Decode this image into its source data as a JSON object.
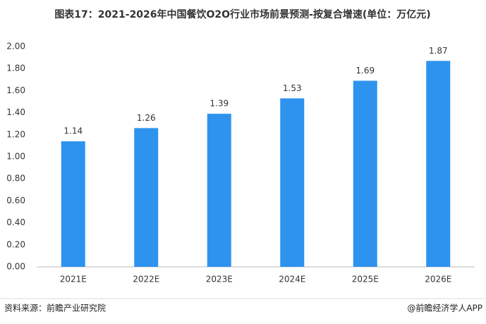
{
  "chart_data": {
    "type": "bar",
    "title": "图表17：2021-2026年中国餐饮O2O行业市场前景预测-按复合增速(单位：万亿元)",
    "categories": [
      "2021E",
      "2022E",
      "2023E",
      "2024E",
      "2025E",
      "2026E"
    ],
    "values": [
      1.14,
      1.26,
      1.39,
      1.53,
      1.69,
      1.87
    ],
    "color": "#2e93ee",
    "ylim": [
      0,
      2
    ],
    "yticks": [
      {
        "value": 0,
        "label": "0.00"
      },
      {
        "value": 0.2,
        "label": "0.20"
      },
      {
        "value": 0.4,
        "label": "0.40"
      },
      {
        "value": 0.6,
        "label": "0.60"
      },
      {
        "value": 0.8,
        "label": "0.80"
      },
      {
        "value": 1.0,
        "label": "1.00"
      },
      {
        "value": 1.2,
        "label": "1.20"
      },
      {
        "value": 1.4,
        "label": "1.40"
      },
      {
        "value": 1.6,
        "label": "1.60"
      },
      {
        "value": 1.8,
        "label": "1.80"
      },
      {
        "value": 2.0,
        "label": "2.00"
      }
    ],
    "grid": false,
    "source": "资料来源：前瞻产业研究院",
    "credit": "@前瞻经济学人APP"
  }
}
